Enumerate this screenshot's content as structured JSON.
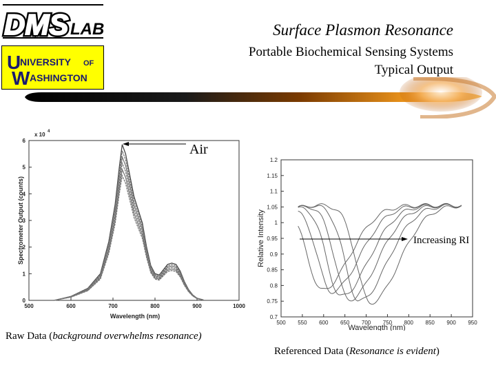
{
  "logos": {
    "dms": {
      "brand": "DMS",
      "suffix": "LAB"
    },
    "uw": {
      "line1_initial": "U",
      "line1_rest": "NIVERSITY",
      "line1_of": "OF",
      "line2_initial": "W",
      "line2_rest": "ASHINGTON"
    }
  },
  "header": {
    "title": "Surface Plasmon Resonance",
    "subtitle": "Portable Biochemical Sensing Systems",
    "subtitle2": "Typical Output"
  },
  "annotations": {
    "air_label": "Air",
    "ri_label": "Increasing RI"
  },
  "captions": {
    "left_prefix": "Raw Data (",
    "left_italic": "background overwhelms resonance)",
    "right_prefix": "Referenced Data (",
    "right_italic": "Resonance is evident",
    "right_suffix": ")"
  },
  "colors": {
    "accent_yellow": "#ffff00",
    "swoosh_orange": "#f39a1e",
    "line_gray": "#555555"
  },
  "chart_data": [
    {
      "type": "line",
      "xlabel": "Wavelength (nm)",
      "ylabel": "Spectrometer Output (counts)",
      "multiplier_label": "x 10",
      "multiplier_exp": "4",
      "xlim": [
        500,
        1000
      ],
      "ylim": [
        0,
        6
      ],
      "xticks": [
        500,
        600,
        700,
        800,
        900,
        1000
      ],
      "yticks": [
        0,
        1,
        2,
        3,
        4,
        5,
        6
      ],
      "grid": false,
      "peak_scales": [
        1.0,
        0.96,
        0.92,
        0.88,
        0.84,
        0.8
      ],
      "series": [
        {
          "x": [
            560,
            600,
            640,
            670,
            690,
            705,
            715,
            722,
            730,
            740,
            750,
            760,
            770,
            780,
            790,
            800,
            810,
            820,
            830,
            840,
            850,
            860,
            870,
            880,
            890,
            900,
            915
          ],
          "values": [
            0.0,
            0.15,
            0.45,
            1.0,
            2.2,
            3.6,
            5.0,
            5.85,
            5.5,
            4.7,
            3.9,
            3.4,
            2.9,
            2.0,
            1.3,
            1.0,
            0.95,
            1.15,
            1.35,
            1.4,
            1.35,
            1.1,
            0.7,
            0.4,
            0.2,
            0.08,
            0.02
          ]
        }
      ]
    },
    {
      "type": "line",
      "xlabel": "Wavelength (nm)",
      "ylabel": "Relative Intensity",
      "xlim": [
        500,
        950
      ],
      "ylim": [
        0.7,
        1.2
      ],
      "xticks": [
        500,
        550,
        600,
        650,
        700,
        750,
        800,
        850,
        900,
        950
      ],
      "yticks": [
        0.7,
        0.75,
        0.8,
        0.85,
        0.9,
        0.95,
        1,
        1.05,
        1.1,
        1.15,
        1.2
      ],
      "grid": false,
      "series": [
        {
          "min_x": 595,
          "min_y": 0.785
        },
        {
          "min_x": 618,
          "min_y": 0.78
        },
        {
          "min_x": 640,
          "min_y": 0.765
        },
        {
          "min_x": 660,
          "min_y": 0.755
        },
        {
          "min_x": 683,
          "min_y": 0.75
        },
        {
          "min_x": 710,
          "min_y": 0.745
        }
      ]
    }
  ]
}
